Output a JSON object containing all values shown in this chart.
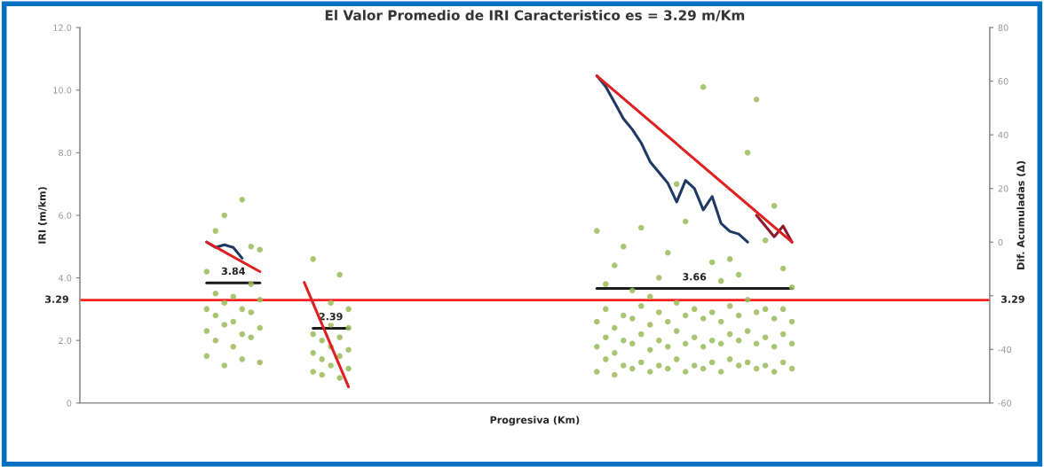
{
  "chart_data": {
    "type": "scatter",
    "title": "El Valor Promedio de IRI Caracteristico es = 3.29 m/Km",
    "xlabel": "Progresiva (Km)",
    "ylabel": "IRI (m/km)",
    "y2label": "Dif. Acumuladas (Δ)",
    "categories": [
      null,
      null,
      null,
      null,
      null,
      null,
      null,
      null,
      null,
      null,
      null,
      null,
      null,
      null,
      null,
      null,
      null,
      null,
      null,
      null,
      null,
      null,
      null,
      null,
      null,
      null,
      null,
      null,
      null,
      null,
      null,
      null,
      null,
      null,
      null,
      null,
      null,
      null,
      null,
      null,
      null,
      null,
      null,
      null,
      null,
      null,
      null,
      null,
      null,
      null,
      null,
      null,
      null,
      null,
      null,
      null,
      null,
      null,
      null,
      null,
      null,
      null,
      null,
      null,
      null,
      null,
      null,
      null,
      null,
      null,
      null,
      null,
      null,
      null,
      null,
      null,
      null,
      null,
      null,
      null,
      null,
      null,
      null,
      null,
      null,
      null,
      null,
      null,
      null,
      null,
      null,
      null,
      null,
      null,
      null,
      null,
      null,
      null,
      null,
      null,
      null,
      null,
      null
    ],
    "ylim": [
      0,
      12
    ],
    "yticks": [
      0,
      {
        "value": 2,
        "label": "2.0"
      },
      {
        "value": 4,
        "label": "4.0"
      },
      {
        "value": 6,
        "label": "6.0"
      },
      {
        "value": 8,
        "label": "8.0"
      },
      {
        "value": 10,
        "label": "10.0"
      },
      {
        "value": 12,
        "label": "12.0"
      }
    ],
    "y2lim": [
      -60,
      80
    ],
    "y2ticks": [
      -60,
      -40,
      {
        "value": -20,
        "label": null
      },
      0,
      20,
      40,
      60,
      80
    ],
    "grid": false,
    "legend": false,
    "ref_lines": [
      {
        "axis": "y",
        "value": 3.29,
        "label": "3.29",
        "color": "#ff2020"
      }
    ],
    "series": [
      {
        "color": "#9bbb59",
        "marker": "circle",
        "values": [
          null,
          null,
          null,
          null,
          null,
          null,
          null,
          null,
          null,
          null,
          null,
          null,
          null,
          null,
          1.5,
          2.0,
          1.2,
          1.8,
          1.4,
          2.1,
          1.3,
          null,
          null,
          null,
          null,
          null,
          1.0,
          0.9,
          1.2,
          0.8,
          1.1,
          null,
          null,
          null,
          null,
          null,
          null,
          null,
          null,
          null,
          null,
          null,
          null,
          null,
          null,
          null,
          null,
          null,
          null,
          null,
          null,
          null,
          null,
          null,
          null,
          null,
          null,
          null,
          1.0,
          1.4,
          0.9,
          1.2,
          1.1,
          1.3,
          1.0,
          1.2,
          1.1,
          1.4,
          1.0,
          1.2,
          1.1,
          1.3,
          1.0,
          1.4,
          1.2,
          1.3,
          1.1,
          1.2,
          1.0,
          1.3,
          1.1,
          null,
          null,
          null,
          null,
          null,
          null,
          null,
          null,
          null,
          null,
          null,
          null,
          null,
          null,
          null,
          null,
          null,
          null,
          null,
          null,
          null,
          null
        ]
      },
      {
        "color": "#9bbb59",
        "marker": "circle",
        "values": [
          null,
          null,
          null,
          null,
          null,
          null,
          null,
          null,
          null,
          null,
          null,
          null,
          null,
          null,
          2.3,
          2.8,
          2.5,
          2.6,
          2.2,
          2.9,
          2.4,
          null,
          null,
          null,
          null,
          null,
          1.6,
          1.4,
          1.8,
          1.5,
          1.7,
          null,
          null,
          null,
          null,
          null,
          null,
          null,
          null,
          null,
          null,
          null,
          null,
          null,
          null,
          null,
          null,
          null,
          null,
          null,
          null,
          null,
          null,
          null,
          null,
          null,
          null,
          null,
          1.8,
          2.1,
          1.6,
          2.0,
          1.9,
          2.2,
          1.7,
          2.0,
          1.8,
          2.3,
          1.9,
          2.1,
          1.8,
          2.0,
          1.9,
          2.2,
          2.0,
          2.3,
          1.9,
          2.1,
          1.8,
          2.2,
          1.9,
          null,
          null,
          null,
          null,
          null,
          null,
          null,
          null,
          null,
          null,
          null,
          null,
          null,
          null,
          null,
          null,
          null,
          null,
          null,
          null,
          null,
          null
        ]
      },
      {
        "color": "#9bbb59",
        "marker": "circle",
        "values": [
          null,
          null,
          null,
          null,
          null,
          null,
          null,
          null,
          null,
          null,
          null,
          null,
          null,
          null,
          3.0,
          3.5,
          3.2,
          3.4,
          3.0,
          3.8,
          3.3,
          null,
          null,
          null,
          null,
          null,
          2.2,
          2.0,
          2.5,
          2.1,
          2.4,
          null,
          null,
          null,
          null,
          null,
          null,
          null,
          null,
          null,
          null,
          null,
          null,
          null,
          null,
          null,
          null,
          null,
          null,
          null,
          null,
          null,
          null,
          null,
          null,
          null,
          null,
          null,
          2.6,
          3.0,
          2.4,
          2.8,
          2.7,
          3.1,
          2.5,
          2.9,
          2.6,
          3.2,
          2.8,
          3.0,
          2.7,
          2.9,
          2.6,
          3.1,
          2.8,
          3.3,
          2.9,
          3.0,
          2.7,
          3.0,
          2.6,
          null,
          null,
          null,
          null,
          null,
          null,
          null,
          null,
          null,
          null,
          null,
          null,
          null,
          null,
          null,
          null,
          null,
          null,
          null,
          null,
          null,
          null
        ]
      },
      {
        "color": "#9bbb59",
        "marker": "circle",
        "values": [
          null,
          null,
          null,
          null,
          null,
          null,
          null,
          null,
          null,
          null,
          null,
          null,
          null,
          null,
          4.2,
          5.5,
          6.0,
          null,
          6.5,
          5.0,
          4.9,
          null,
          null,
          null,
          null,
          null,
          4.6,
          null,
          3.2,
          4.1,
          3.0,
          null,
          null,
          null,
          null,
          null,
          null,
          null,
          null,
          null,
          null,
          null,
          null,
          null,
          null,
          null,
          null,
          null,
          null,
          null,
          null,
          null,
          null,
          null,
          null,
          null,
          null,
          null,
          5.5,
          3.8,
          4.4,
          5.0,
          3.6,
          5.6,
          3.4,
          4.0,
          4.8,
          7.0,
          5.8,
          null,
          10.1,
          4.5,
          3.9,
          4.6,
          4.1,
          8.0,
          9.7,
          5.2,
          6.3,
          4.3,
          3.7,
          null,
          null,
          null,
          null,
          null,
          null,
          null,
          null,
          null,
          null,
          null,
          null,
          null,
          null,
          null,
          null,
          null,
          null,
          null,
          null,
          null,
          null
        ]
      },
      {
        "type": "line",
        "color": "#1a1a1a",
        "values": [
          null,
          null,
          null,
          null,
          null,
          null,
          null,
          null,
          null,
          null,
          null,
          null,
          null,
          null,
          3.84,
          3.84,
          3.84,
          3.84,
          3.84,
          3.84,
          3.84,
          null,
          null,
          null,
          null,
          null,
          null,
          null,
          null,
          null,
          null,
          null,
          null,
          null,
          null,
          null,
          null,
          null,
          null,
          null,
          null,
          null,
          null,
          null,
          null,
          null,
          null,
          null,
          null,
          null,
          null,
          null,
          null,
          null,
          null,
          null,
          null,
          null,
          null,
          null,
          null,
          null,
          null,
          null,
          null,
          null,
          null,
          null,
          null,
          null,
          null,
          null,
          null,
          null,
          null,
          null,
          null,
          null,
          null,
          null,
          null,
          null,
          null,
          null,
          null,
          null,
          null,
          null,
          null,
          null,
          null,
          null,
          null,
          null,
          null,
          null,
          null,
          null,
          null,
          null,
          null,
          null,
          null
        ],
        "value_labels": [
          null,
          null,
          null,
          null,
          null,
          null,
          null,
          null,
          null,
          null,
          null,
          null,
          null,
          null,
          null,
          null,
          null,
          "3.84",
          null,
          null,
          null,
          null,
          null,
          null,
          null,
          null,
          null,
          null,
          null,
          null,
          null,
          null,
          null,
          null,
          null,
          null,
          null,
          null,
          null,
          null,
          null,
          null,
          null,
          null,
          null,
          null,
          null,
          null,
          null,
          null,
          null,
          null,
          null,
          null,
          null,
          null,
          null,
          null,
          null,
          null,
          null,
          null,
          null,
          null,
          null,
          null,
          null,
          null,
          null,
          null,
          null,
          null,
          null,
          null,
          null,
          null,
          null,
          null,
          null,
          null,
          null,
          null,
          null,
          null,
          null,
          null,
          null,
          null,
          null,
          null,
          null,
          null,
          null,
          null,
          null,
          null,
          null,
          null,
          null,
          null,
          null,
          null,
          null
        ]
      },
      {
        "type": "line",
        "color": "#1a1a1a",
        "values": [
          null,
          null,
          null,
          null,
          null,
          null,
          null,
          null,
          null,
          null,
          null,
          null,
          null,
          null,
          null,
          null,
          null,
          null,
          null,
          null,
          null,
          null,
          null,
          null,
          null,
          null,
          2.39,
          2.39,
          2.39,
          2.39,
          2.39,
          null,
          null,
          null,
          null,
          null,
          null,
          null,
          null,
          null,
          null,
          null,
          null,
          null,
          null,
          null,
          null,
          null,
          null,
          null,
          null,
          null,
          null,
          null,
          null,
          null,
          null,
          null,
          null,
          null,
          null,
          null,
          null,
          null,
          null,
          null,
          null,
          null,
          null,
          null,
          null,
          null,
          null,
          null,
          null,
          null,
          null,
          null,
          null,
          null,
          null,
          null,
          null,
          null,
          null,
          null,
          null,
          null,
          null,
          null,
          null,
          null,
          null,
          null,
          null,
          null,
          null,
          null,
          null,
          null,
          null,
          null,
          null
        ],
        "value_labels": [
          null,
          null,
          null,
          null,
          null,
          null,
          null,
          null,
          null,
          null,
          null,
          null,
          null,
          null,
          null,
          null,
          null,
          null,
          null,
          null,
          null,
          null,
          null,
          null,
          null,
          null,
          null,
          null,
          "2.39",
          null,
          null,
          null,
          null,
          null,
          null,
          null,
          null,
          null,
          null,
          null,
          null,
          null,
          null,
          null,
          null,
          null,
          null,
          null,
          null,
          null,
          null,
          null,
          null,
          null,
          null,
          null,
          null,
          null,
          null,
          null,
          null,
          null,
          null,
          null,
          null,
          null,
          null,
          null,
          null,
          null,
          null,
          null,
          null,
          null,
          null,
          null,
          null,
          null,
          null,
          null,
          null,
          null,
          null,
          null,
          null,
          null,
          null,
          null,
          null,
          null,
          null,
          null,
          null,
          null,
          null,
          null,
          null,
          null,
          null,
          null,
          null,
          null,
          null
        ]
      },
      {
        "type": "line",
        "color": "#1a1a1a",
        "values": [
          null,
          null,
          null,
          null,
          null,
          null,
          null,
          null,
          null,
          null,
          null,
          null,
          null,
          null,
          null,
          null,
          null,
          null,
          null,
          null,
          null,
          null,
          null,
          null,
          null,
          null,
          null,
          null,
          null,
          null,
          null,
          null,
          null,
          null,
          null,
          null,
          null,
          null,
          null,
          null,
          null,
          null,
          null,
          null,
          null,
          null,
          null,
          null,
          null,
          null,
          null,
          null,
          null,
          null,
          null,
          null,
          null,
          null,
          3.66,
          3.66,
          3.66,
          3.66,
          3.66,
          3.66,
          3.66,
          3.66,
          3.66,
          3.66,
          3.66,
          3.66,
          3.66,
          3.66,
          3.66,
          3.66,
          3.66,
          3.66,
          3.66,
          3.66,
          3.66,
          3.66,
          3.66,
          null,
          null,
          null,
          null,
          null,
          null,
          null,
          null,
          null,
          null,
          null,
          null,
          null,
          null,
          null,
          null,
          null,
          null,
          null,
          null,
          null,
          null
        ],
        "value_labels": [
          null,
          null,
          null,
          null,
          null,
          null,
          null,
          null,
          null,
          null,
          null,
          null,
          null,
          null,
          null,
          null,
          null,
          null,
          null,
          null,
          null,
          null,
          null,
          null,
          null,
          null,
          null,
          null,
          null,
          null,
          null,
          null,
          null,
          null,
          null,
          null,
          null,
          null,
          null,
          null,
          null,
          null,
          null,
          null,
          null,
          null,
          null,
          null,
          null,
          null,
          null,
          null,
          null,
          null,
          null,
          null,
          null,
          null,
          null,
          null,
          null,
          null,
          null,
          null,
          null,
          null,
          null,
          null,
          null,
          "3.66",
          null,
          null,
          null,
          null,
          null,
          null,
          null,
          null,
          null,
          null,
          null,
          null,
          null,
          null,
          null,
          null,
          null,
          null,
          null,
          null,
          null,
          null,
          null,
          null,
          null,
          null,
          null,
          null,
          null,
          null,
          null,
          null,
          null
        ]
      },
      {
        "type": "line",
        "axis": "y2",
        "color": "#1f3864",
        "values": [
          null,
          null,
          null,
          null,
          null,
          null,
          null,
          null,
          null,
          null,
          null,
          null,
          null,
          null,
          0,
          -2,
          -1,
          -2,
          -6,
          null,
          null,
          null,
          null,
          null,
          null,
          null,
          null,
          null,
          null,
          null,
          null,
          null,
          null,
          null,
          null,
          null,
          null,
          null,
          null,
          null,
          null,
          null,
          null,
          null,
          null,
          null,
          null,
          null,
          null,
          null,
          null,
          null,
          null,
          null,
          null,
          null,
          null,
          null,
          null,
          null,
          null,
          null,
          null,
          null,
          null,
          null,
          null,
          null,
          null,
          null,
          null,
          null,
          null,
          null,
          null,
          null,
          null,
          null,
          null,
          null,
          null,
          null,
          null,
          null,
          null,
          null,
          null,
          null,
          null,
          null,
          null,
          null,
          null,
          null,
          null,
          null,
          null,
          null,
          null,
          null,
          null,
          null,
          null
        ]
      },
      {
        "type": "line",
        "axis": "y2",
        "color": "#1f3864",
        "values": [
          null,
          null,
          null,
          null,
          null,
          null,
          null,
          null,
          null,
          null,
          null,
          null,
          null,
          null,
          null,
          null,
          null,
          null,
          null,
          null,
          null,
          null,
          null,
          null,
          null,
          null,
          null,
          null,
          null,
          null,
          null,
          null,
          null,
          null,
          null,
          null,
          null,
          null,
          null,
          null,
          null,
          null,
          null,
          null,
          null,
          null,
          null,
          null,
          null,
          null,
          null,
          null,
          null,
          null,
          null,
          null,
          null,
          null,
          62,
          58,
          52,
          46,
          42,
          37,
          30,
          26,
          22,
          15,
          23,
          20,
          12,
          17,
          7,
          4,
          3,
          0,
          null,
          null,
          null,
          null,
          null,
          null,
          null,
          null,
          null,
          null,
          null,
          null,
          null,
          null,
          null,
          null,
          null,
          null,
          null,
          null,
          null,
          null,
          null,
          null,
          null,
          null,
          null
        ]
      },
      {
        "type": "line",
        "axis": "y2",
        "color": "#8b1a2b",
        "values": [
          null,
          null,
          null,
          null,
          null,
          null,
          null,
          null,
          null,
          null,
          null,
          null,
          null,
          null,
          null,
          null,
          null,
          null,
          null,
          null,
          null,
          null,
          null,
          null,
          null,
          null,
          null,
          null,
          null,
          null,
          null,
          null,
          null,
          null,
          null,
          null,
          null,
          null,
          null,
          null,
          null,
          null,
          null,
          null,
          null,
          null,
          null,
          null,
          null,
          null,
          null,
          null,
          null,
          null,
          null,
          null,
          null,
          null,
          null,
          null,
          null,
          null,
          null,
          null,
          null,
          null,
          null,
          null,
          null,
          null,
          null,
          null,
          null,
          null,
          null,
          null,
          10,
          6,
          2,
          6,
          0,
          null,
          null,
          null,
          null,
          null,
          null,
          null,
          null,
          null,
          null,
          null,
          null,
          null,
          null,
          null,
          null,
          null,
          null,
          null,
          null,
          null,
          null
        ]
      },
      {
        "type": "line",
        "axis": "y2",
        "color": "#e02020",
        "values": [
          null,
          null,
          null,
          null,
          null,
          null,
          null,
          null,
          null,
          null,
          null,
          null,
          null,
          null,
          0,
          null,
          null,
          null,
          null,
          null,
          -11,
          null,
          null,
          null,
          null,
          null,
          null,
          null,
          null,
          null,
          null,
          null,
          null,
          null,
          null,
          null,
          null,
          null,
          null,
          null,
          null,
          null,
          null,
          null,
          null,
          null,
          null,
          null,
          null,
          null,
          null,
          null,
          null,
          null,
          null,
          null,
          null,
          null,
          null,
          null,
          null,
          null,
          null,
          null,
          null,
          null,
          null,
          null,
          null,
          null,
          null,
          null,
          null,
          null,
          null,
          null,
          null,
          null,
          null,
          null,
          null,
          null,
          null,
          null,
          null,
          null,
          null,
          null,
          null,
          null,
          null,
          null,
          null,
          null,
          null,
          null,
          null,
          null,
          null,
          null,
          null,
          null,
          null
        ]
      },
      {
        "type": "line",
        "axis": "y2",
        "color": "#e02020",
        "values": [
          null,
          null,
          null,
          null,
          null,
          null,
          null,
          null,
          null,
          null,
          null,
          null,
          null,
          null,
          null,
          null,
          null,
          null,
          null,
          null,
          null,
          null,
          null,
          null,
          null,
          -15,
          null,
          null,
          null,
          null,
          -54,
          null,
          null,
          null,
          null,
          null,
          null,
          null,
          null,
          null,
          null,
          null,
          null,
          null,
          null,
          null,
          null,
          null,
          null,
          null,
          null,
          null,
          null,
          null,
          null,
          null,
          null,
          null,
          null,
          null,
          null,
          null,
          null,
          null,
          null,
          null,
          null,
          null,
          null,
          null,
          null,
          null,
          null,
          null,
          null,
          null,
          null,
          null,
          null,
          null,
          null,
          null,
          null,
          null,
          null,
          null,
          null,
          null,
          null,
          null,
          null,
          null,
          null,
          null,
          null,
          null,
          null,
          null,
          null,
          null,
          null,
          null,
          null
        ]
      },
      {
        "type": "line",
        "axis": "y2",
        "color": "#e02020",
        "values": [
          null,
          null,
          null,
          null,
          null,
          null,
          null,
          null,
          null,
          null,
          null,
          null,
          null,
          null,
          null,
          null,
          null,
          null,
          null,
          null,
          null,
          null,
          null,
          null,
          null,
          null,
          null,
          null,
          null,
          null,
          null,
          null,
          null,
          null,
          null,
          null,
          null,
          null,
          null,
          null,
          null,
          null,
          null,
          null,
          null,
          null,
          null,
          null,
          null,
          null,
          null,
          null,
          null,
          null,
          null,
          null,
          null,
          null,
          62,
          null,
          null,
          null,
          null,
          null,
          null,
          null,
          null,
          null,
          null,
          null,
          null,
          null,
          null,
          null,
          null,
          null,
          null,
          null,
          null,
          null,
          0,
          null,
          null,
          null,
          null,
          null,
          null,
          null,
          null,
          null,
          null,
          null,
          null,
          null,
          null,
          null,
          null,
          null,
          null,
          null,
          null,
          null,
          null
        ]
      }
    ]
  }
}
